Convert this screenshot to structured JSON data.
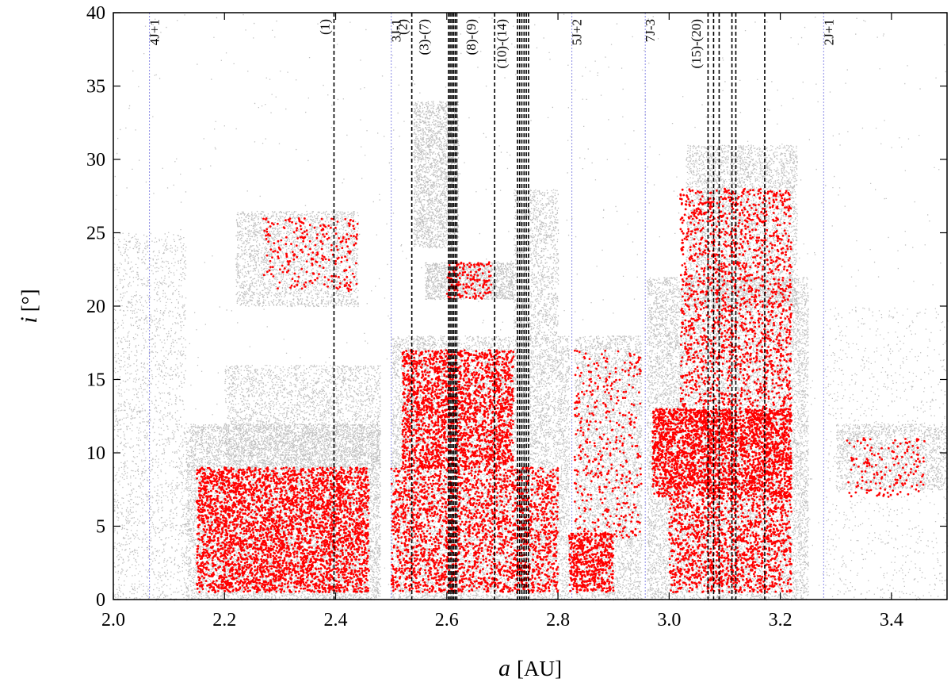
{
  "chart_data": {
    "type": "scatter",
    "title": "",
    "xlabel": {
      "symbol": "a",
      "unit": "[AU]"
    },
    "ylabel": {
      "symbol": "i",
      "unit": "[°]"
    },
    "xlim": [
      2.0,
      3.5
    ],
    "ylim": [
      0,
      40
    ],
    "x_ticks": [
      "2.0",
      "2.2",
      "2.4",
      "2.6",
      "2.8",
      "3.0",
      "3.2",
      "3.4"
    ],
    "y_ticks": [
      "0",
      "5",
      "10",
      "15",
      "20",
      "25",
      "30",
      "35",
      "40"
    ],
    "grid": false,
    "legend": "none",
    "colors": {
      "background": "#c0c0c0",
      "highlight": "#ff0000",
      "mmr_line": "#8a8ae6",
      "secular_line": "#000000"
    },
    "mean_motion_resonances": [
      {
        "label": "4J+1",
        "a": 2.065
      },
      {
        "label": "3J-1",
        "a": 2.5
      },
      {
        "label": "5J+2",
        "a": 2.825
      },
      {
        "label": "7J-3",
        "a": 2.957
      },
      {
        "label": "2J+1",
        "a": 3.278
      }
    ],
    "secular_resonance_lines": [
      2.397,
      2.537,
      2.603,
      2.606,
      2.609,
      2.612,
      2.615,
      2.618,
      2.686,
      2.727,
      2.731,
      2.735,
      2.739,
      2.743,
      2.747,
      3.07,
      3.08,
      3.09,
      3.113,
      3.12,
      3.172
    ],
    "secular_resonance_labels": [
      {
        "label": "(1)",
        "a": 2.397
      },
      {
        "label": "(2)",
        "a": 2.537
      },
      {
        "label": "(3)-(7)",
        "a": 2.575
      },
      {
        "label": "(8)-(9)",
        "a": 2.66
      },
      {
        "label": "(10)-(14)",
        "a": 2.715
      },
      {
        "label": "(15)-(20)",
        "a": 3.065
      }
    ],
    "series": [
      {
        "role": "background-population",
        "color": "#c0c0c0",
        "density_regions": [
          {
            "a": [
              2.0,
              2.13
            ],
            "i": [
              0,
              25
            ],
            "weight": 1.2
          },
          {
            "a": [
              2.13,
              2.48
            ],
            "i": [
              0,
              12
            ],
            "weight": 6.0
          },
          {
            "a": [
              2.2,
              2.48
            ],
            "i": [
              9,
              16
            ],
            "weight": 1.6
          },
          {
            "a": [
              2.22,
              2.44
            ],
            "i": [
              20,
              26.5
            ],
            "weight": 1.6
          },
          {
            "a": [
              2.5,
              2.82
            ],
            "i": [
              0,
              18
            ],
            "weight": 7.0
          },
          {
            "a": [
              2.54,
              2.62
            ],
            "i": [
              24,
              34
            ],
            "weight": 1.4
          },
          {
            "a": [
              2.56,
              2.72
            ],
            "i": [
              20.5,
              23
            ],
            "weight": 0.9
          },
          {
            "a": [
              2.72,
              2.8
            ],
            "i": [
              18,
              28
            ],
            "weight": 0.8
          },
          {
            "a": [
              2.83,
              2.95
            ],
            "i": [
              0,
              18
            ],
            "weight": 2.6
          },
          {
            "a": [
              2.96,
              3.25
            ],
            "i": [
              0,
              22
            ],
            "weight": 8.0
          },
          {
            "a": [
              3.03,
              3.23
            ],
            "i": [
              20,
              31
            ],
            "weight": 2.6
          },
          {
            "a": [
              3.3,
              3.5
            ],
            "i": [
              7.5,
              12
            ],
            "weight": 1.0
          },
          {
            "a": [
              3.28,
              3.5
            ],
            "i": [
              0,
              20
            ],
            "weight": 0.5
          },
          {
            "a": [
              2.0,
              3.5
            ],
            "i": [
              0,
              40
            ],
            "weight": 0.6
          }
        ]
      },
      {
        "role": "highlighted-members",
        "color": "#ff0000",
        "density_regions": [
          {
            "a": [
              2.15,
              2.46
            ],
            "i": [
              0.5,
              9
            ],
            "weight": 7.0
          },
          {
            "a": [
              2.27,
              2.44
            ],
            "i": [
              21,
              26
            ],
            "weight": 0.5
          },
          {
            "a": [
              2.52,
              2.72
            ],
            "i": [
              9,
              17
            ],
            "weight": 4.0
          },
          {
            "a": [
              2.5,
              2.8
            ],
            "i": [
              0.5,
              9
            ],
            "weight": 4.5
          },
          {
            "a": [
              2.6,
              2.68
            ],
            "i": [
              20.5,
              23
            ],
            "weight": 0.3
          },
          {
            "a": [
              2.82,
              2.9
            ],
            "i": [
              0.5,
              4.5
            ],
            "weight": 1.0
          },
          {
            "a": [
              2.83,
              2.95
            ],
            "i": [
              4,
              17
            ],
            "weight": 0.8
          },
          {
            "a": [
              2.97,
              3.22
            ],
            "i": [
              7,
              13
            ],
            "weight": 5.0
          },
          {
            "a": [
              3.02,
              3.22
            ],
            "i": [
              12,
              28
            ],
            "weight": 3.5
          },
          {
            "a": [
              3.0,
              3.22
            ],
            "i": [
              0.5,
              7
            ],
            "weight": 2.5
          },
          {
            "a": [
              3.32,
              3.46
            ],
            "i": [
              7,
              11
            ],
            "weight": 0.3
          }
        ]
      }
    ]
  }
}
